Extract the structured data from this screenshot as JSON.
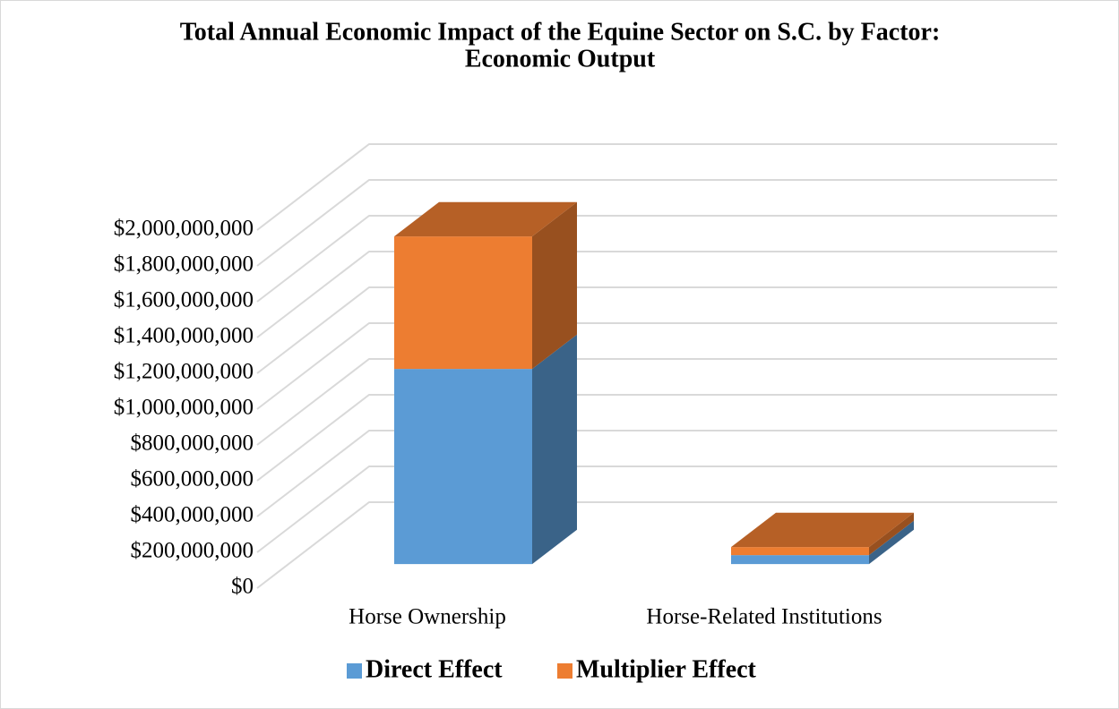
{
  "chart_data": {
    "type": "bar3d_stacked",
    "title": [
      "Total Annual Economic Impact of the Equine Sector on S.C. by Factor:",
      "Economic Output"
    ],
    "categories": [
      "Horse Ownership",
      "Horse-Related Institutions"
    ],
    "series": [
      {
        "name": "Direct Effect",
        "color": "#5b9bd5",
        "values": [
          1090000000,
          50000000
        ]
      },
      {
        "name": "Multiplier Effect",
        "color": "#ed7d31",
        "values": [
          740000000,
          45000000
        ]
      }
    ],
    "ylim": [
      0,
      2000000000
    ],
    "yticks": [
      {
        "value": 0,
        "label": "$0"
      },
      {
        "value": 200000000,
        "label": "$200,000,000"
      },
      {
        "value": 400000000,
        "label": "$400,000,000"
      },
      {
        "value": 600000000,
        "label": "$600,000,000"
      },
      {
        "value": 800000000,
        "label": "$800,000,000"
      },
      {
        "value": 1000000000,
        "label": "$1,000,000,000"
      },
      {
        "value": 1200000000,
        "label": "$1,200,000,000"
      },
      {
        "value": 1400000000,
        "label": "$1,400,000,000"
      },
      {
        "value": 1600000000,
        "label": "$1,600,000,000"
      },
      {
        "value": 1800000000,
        "label": "$1,800,000,000"
      },
      {
        "value": 2000000000,
        "label": "$2,000,000,000"
      }
    ],
    "grid": true,
    "legend": "bottom"
  }
}
